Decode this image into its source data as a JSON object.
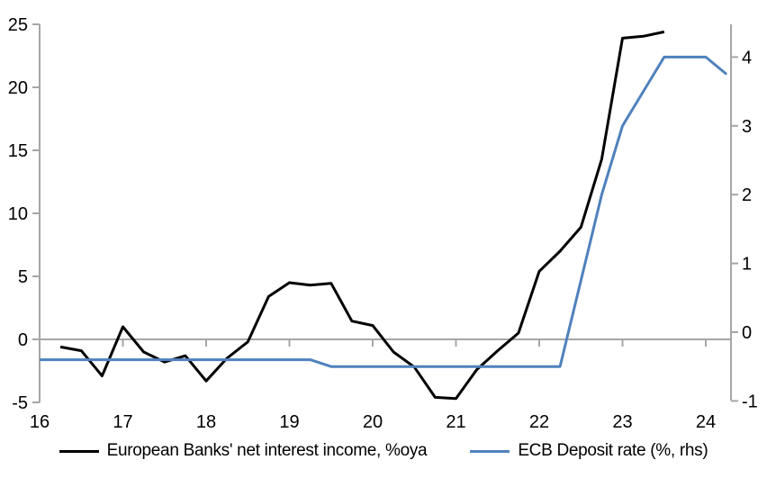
{
  "chart_data": {
    "type": "line",
    "title": "",
    "grid": false,
    "legend_position": "bottom",
    "x_axis": {
      "label": "",
      "range": [
        16,
        24.3
      ],
      "ticks": [
        16,
        17,
        18,
        19,
        20,
        21,
        22,
        23,
        24
      ],
      "labels": [
        "16",
        "17",
        "18",
        "19",
        "20",
        "21",
        "22",
        "23",
        "24"
      ]
    },
    "left_axis": {
      "label": "",
      "range": [
        -5,
        25
      ],
      "ticks": [
        25,
        20,
        15,
        10,
        5,
        0,
        -5
      ]
    },
    "right_axis": {
      "label": "",
      "range": [
        -1,
        4.45
      ],
      "ticks": [
        4,
        3,
        2,
        1,
        0,
        -1
      ]
    },
    "series": [
      {
        "name": "European Banks' net interest income, %oya",
        "axis": "left",
        "color": "#000000",
        "x": [
          16.25,
          16.5,
          16.75,
          17.0,
          17.25,
          17.5,
          17.75,
          18.0,
          18.25,
          18.5,
          18.75,
          19.0,
          19.25,
          19.5,
          19.75,
          20.0,
          20.25,
          20.5,
          20.75,
          21.0,
          21.25,
          21.5,
          21.75,
          22.0,
          22.25,
          22.5,
          22.75,
          23.0,
          23.25,
          23.5
        ],
        "values": [
          -0.6,
          -0.9,
          -2.9,
          1.0,
          -1.0,
          -1.8,
          -1.3,
          -3.3,
          -1.5,
          -0.2,
          3.4,
          4.5,
          4.3,
          4.45,
          1.45,
          1.1,
          -1.0,
          -2.2,
          -4.6,
          -4.7,
          -2.4,
          -0.9,
          0.5,
          5.4,
          7.0,
          8.9,
          14.3,
          23.9,
          24.05,
          24.4
        ]
      },
      {
        "name": "ECB Deposit rate (%, rhs)",
        "axis": "right",
        "color": "#4f81bd",
        "x": [
          16.0,
          16.25,
          16.5,
          16.75,
          17.0,
          17.25,
          17.5,
          17.75,
          18.0,
          18.25,
          18.5,
          18.75,
          19.0,
          19.25,
          19.5,
          19.75,
          20.0,
          20.25,
          20.5,
          20.75,
          21.0,
          21.25,
          21.5,
          21.75,
          22.0,
          22.25,
          22.5,
          22.75,
          23.0,
          23.25,
          23.5,
          23.75,
          24.0,
          24.25
        ],
        "values": [
          -0.4,
          -0.4,
          -0.4,
          -0.4,
          -0.4,
          -0.4,
          -0.4,
          -0.4,
          -0.4,
          -0.4,
          -0.4,
          -0.4,
          -0.4,
          -0.4,
          -0.5,
          -0.5,
          -0.5,
          -0.5,
          -0.5,
          -0.5,
          -0.5,
          -0.5,
          -0.5,
          -0.5,
          -0.5,
          -0.5,
          0.75,
          2.0,
          3.0,
          3.5,
          4.0,
          4.0,
          4.0,
          3.75
        ]
      }
    ]
  },
  "colors": {
    "axis": "#a6a6a6",
    "background": "#ffffff",
    "text": "#000000"
  }
}
